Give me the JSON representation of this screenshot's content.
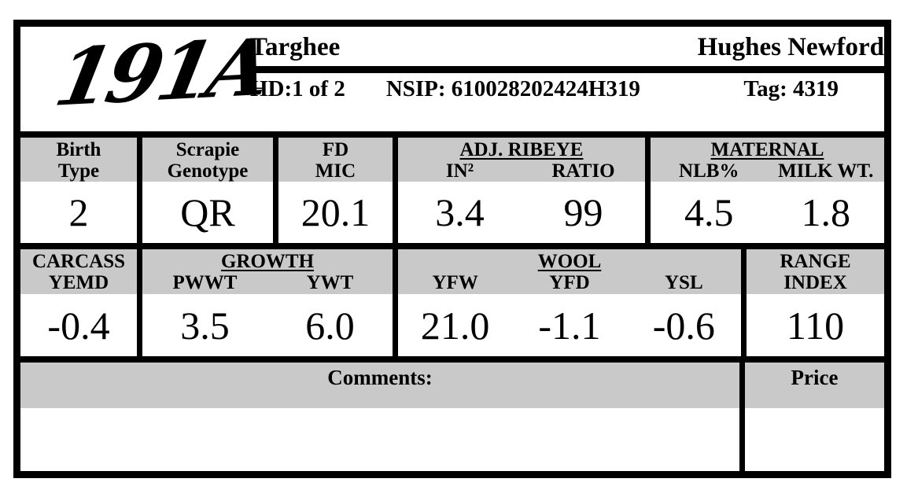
{
  "header": {
    "animal_id": "191A",
    "breed": "Targhee",
    "ranch": "Hughes Newford",
    "hd": "HD:1 of 2",
    "nsip": "NSIP: 610028202424H319",
    "tag": "Tag: 4319"
  },
  "stats": {
    "birth_type": {
      "l1": "Birth",
      "l2": "Type",
      "value": "2"
    },
    "scrapie": {
      "l1": "Scrapie",
      "l2": "Genotype",
      "value": "QR"
    },
    "fd_mic": {
      "l1": "FD",
      "l2": "MIC",
      "value": "20.1"
    },
    "adj_ribeye": {
      "title": "ADJ. RIBEYE",
      "c1": "IN²",
      "c2": "RATIO",
      "v1": "3.4",
      "v2": "99"
    },
    "maternal": {
      "title": "MATERNAL",
      "c1": "NLB%",
      "c2": "MILK WT.",
      "v1": "4.5",
      "v2": "1.8"
    },
    "carcass": {
      "l1": "CARCASS",
      "l2": "YEMD",
      "value": "-0.4"
    },
    "growth": {
      "title": "GROWTH",
      "c1": "PWWT",
      "c2": "YWT",
      "v1": "3.5",
      "v2": "6.0"
    },
    "wool": {
      "title": "WOOL",
      "c1": "YFW",
      "c2": "YFD",
      "c3": "YSL",
      "v1": "21.0",
      "v2": "-1.1",
      "v3": "-0.6"
    },
    "range_index": {
      "l1": "RANGE",
      "l2": "INDEX",
      "value": "110"
    }
  },
  "comments": {
    "label": "Comments:",
    "text": ""
  },
  "price": {
    "label": "Price",
    "value": ""
  },
  "colors": {
    "header_gray": "#c9c9c9",
    "border": "#000000"
  }
}
